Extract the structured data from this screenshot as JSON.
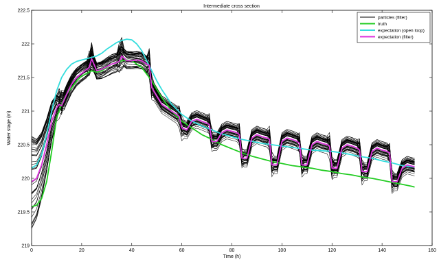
{
  "chart_data": {
    "type": "line",
    "title": "Intermediate cross section",
    "xlabel": "Time (h)",
    "ylabel": "Water stage (m)",
    "xlim": [
      0,
      160
    ],
    "ylim": [
      219,
      222.5
    ],
    "x_ticks": [
      0,
      20,
      40,
      60,
      80,
      100,
      120,
      140,
      160
    ],
    "y_ticks": [
      219,
      219.5,
      220,
      220.5,
      221,
      221.5,
      222,
      222.5
    ],
    "legend_position": "top-right",
    "grid": false,
    "particles": {
      "name": "particles (filter)",
      "color": "#000000",
      "x_end": 153,
      "shown_count": 40
    },
    "series": [
      {
        "name": "truth",
        "color": "#22cc22",
        "x": [
          0,
          2,
          4,
          6,
          8,
          10,
          12,
          14,
          16,
          18,
          20,
          22,
          24,
          26,
          28,
          30,
          32,
          34,
          36,
          38,
          40,
          44,
          48,
          52,
          56,
          60,
          64,
          68,
          72,
          76,
          80,
          84,
          88,
          92,
          96,
          100,
          104,
          108,
          112,
          116,
          120,
          124,
          128,
          132,
          136,
          140,
          144,
          148,
          152,
          153
        ],
        "values": [
          219.58,
          219.6,
          219.7,
          219.95,
          220.4,
          220.9,
          221.1,
          221.25,
          221.35,
          221.45,
          221.52,
          221.56,
          221.6,
          221.58,
          221.6,
          221.65,
          221.7,
          221.72,
          221.75,
          221.76,
          221.75,
          221.65,
          221.45,
          221.2,
          221.0,
          220.85,
          220.75,
          220.65,
          220.58,
          220.5,
          220.44,
          220.38,
          220.33,
          220.29,
          220.25,
          220.22,
          220.19,
          220.17,
          220.15,
          220.12,
          220.1,
          220.07,
          220.05,
          220.02,
          220.0,
          219.97,
          219.94,
          219.91,
          219.88,
          219.87
        ]
      },
      {
        "name": "expectation (open loop)",
        "color": "#33dddd",
        "x": [
          0,
          2,
          4,
          6,
          8,
          10,
          12,
          14,
          16,
          18,
          20,
          22,
          24,
          26,
          28,
          30,
          32,
          34,
          36,
          38,
          40,
          42,
          44,
          46,
          48,
          50,
          52,
          56,
          60,
          64,
          68,
          72,
          76,
          80,
          84,
          88,
          92,
          96,
          100,
          104,
          108,
          112,
          116,
          120,
          124,
          128,
          132,
          136,
          140,
          144,
          148,
          152,
          153
        ],
        "values": [
          220.15,
          220.2,
          220.35,
          220.65,
          221.0,
          221.3,
          221.5,
          221.62,
          221.7,
          221.74,
          221.76,
          221.78,
          221.8,
          221.82,
          221.86,
          221.92,
          221.97,
          222.02,
          222.05,
          222.07,
          222.06,
          222.0,
          221.9,
          221.75,
          221.6,
          221.45,
          221.32,
          221.1,
          220.95,
          220.85,
          220.78,
          220.72,
          220.66,
          220.62,
          220.58,
          220.55,
          220.52,
          220.5,
          220.48,
          220.46,
          220.44,
          220.42,
          220.41,
          220.4,
          220.38,
          220.35,
          220.32,
          220.3,
          220.26,
          220.23,
          220.19,
          220.17,
          220.17
        ]
      },
      {
        "name": "expectation (filter)",
        "color": "#dd33dd",
        "x": [
          0,
          2,
          4,
          6,
          8,
          10,
          11,
          12,
          14,
          16,
          18,
          20,
          22,
          23,
          24,
          26,
          28,
          30,
          32,
          34,
          35,
          36,
          38,
          40,
          42,
          44,
          46,
          47,
          48,
          50,
          52,
          54,
          56,
          58,
          59,
          60,
          62,
          64,
          66,
          68,
          70,
          71,
          72,
          74,
          76,
          78,
          80,
          82,
          83,
          84,
          86,
          88,
          90,
          92,
          94,
          95,
          96,
          98,
          100,
          102,
          104,
          106,
          107,
          108,
          110,
          112,
          114,
          116,
          118,
          119,
          120,
          122,
          124,
          126,
          128,
          130,
          131,
          132,
          134,
          136,
          138,
          140,
          142,
          143,
          144,
          146,
          148,
          150,
          152,
          153
        ],
        "values": [
          219.95,
          220.0,
          220.2,
          220.5,
          220.85,
          221.05,
          221.1,
          221.08,
          221.25,
          221.4,
          221.5,
          221.56,
          221.62,
          221.65,
          221.78,
          221.6,
          221.62,
          221.66,
          221.7,
          221.72,
          221.74,
          221.82,
          221.75,
          221.75,
          221.76,
          221.75,
          221.7,
          221.68,
          221.35,
          221.22,
          221.1,
          221.05,
          221.0,
          220.95,
          220.92,
          220.75,
          220.72,
          220.85,
          220.88,
          220.85,
          220.82,
          220.8,
          220.55,
          220.55,
          220.68,
          220.72,
          220.7,
          220.68,
          220.65,
          220.3,
          220.3,
          220.6,
          220.65,
          220.62,
          220.6,
          220.58,
          220.2,
          220.2,
          220.55,
          220.6,
          220.58,
          220.55,
          220.52,
          220.2,
          220.2,
          220.5,
          220.55,
          220.52,
          220.5,
          220.48,
          220.15,
          220.15,
          220.45,
          220.5,
          220.48,
          220.45,
          220.42,
          220.1,
          220.1,
          220.4,
          220.45,
          220.42,
          220.4,
          220.38,
          219.95,
          219.95,
          220.15,
          220.2,
          220.18,
          220.17
        ]
      }
    ]
  }
}
